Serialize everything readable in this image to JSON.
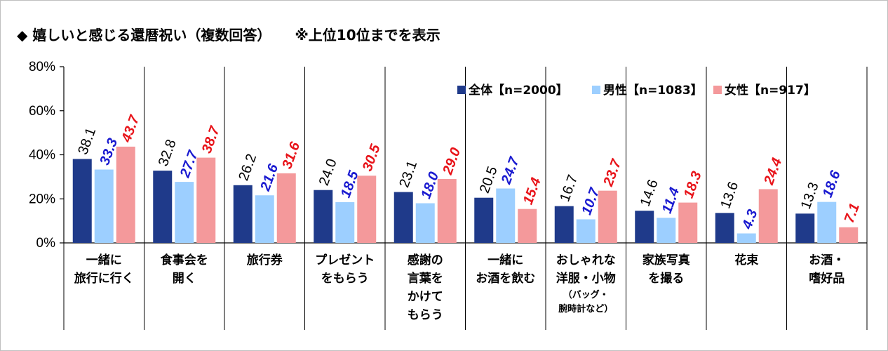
{
  "header": {
    "title": "◆ 嬉しいと感じる還暦祝い（複数回答）",
    "note": "※上位10位までを表示"
  },
  "colors": {
    "all": "#1f3a8a",
    "male": "#9dcfff",
    "female": "#f4999b",
    "label_all": "#000000",
    "label_male": "#1a1ad0",
    "label_female": "#e8141a"
  },
  "chart_data": {
    "type": "bar",
    "title": "◆ 嬉しいと感じる還暦祝い（複数回答）",
    "subtitle": "※上位10位までを表示",
    "ylim": [
      0,
      80
    ],
    "yticks": [
      "0%",
      "20%",
      "40%",
      "60%",
      "80%"
    ],
    "grid": false,
    "legend_position": "top-right",
    "categories": [
      {
        "lines": [
          "一緒に",
          "旅行に行く"
        ],
        "note": []
      },
      {
        "lines": [
          "食事会を",
          "開く"
        ],
        "note": []
      },
      {
        "lines": [
          "旅行券"
        ],
        "note": []
      },
      {
        "lines": [
          "プレゼント",
          "をもらう"
        ],
        "note": []
      },
      {
        "lines": [
          "感謝の",
          "言葉を",
          "かけて",
          "もらう"
        ],
        "note": []
      },
      {
        "lines": [
          "一緒に",
          "お酒を飲む"
        ],
        "note": []
      },
      {
        "lines": [
          "おしゃれな",
          "洋服・小物"
        ],
        "note": [
          "（バッグ・",
          "腕時計など）"
        ]
      },
      {
        "lines": [
          "家族写真",
          "を撮る"
        ],
        "note": []
      },
      {
        "lines": [
          "花束"
        ],
        "note": []
      },
      {
        "lines": [
          "お酒・",
          "嗜好品"
        ],
        "note": []
      }
    ],
    "series": [
      {
        "name": "全体【n=2000】",
        "values": [
          38.1,
          32.8,
          26.2,
          24.0,
          23.1,
          20.5,
          16.7,
          14.6,
          13.6,
          13.3
        ],
        "labels": [
          "38.1",
          "32.8",
          "26.2",
          "24.0",
          "23.1",
          "20.5",
          "16.7",
          "14.6",
          "13.6",
          "13.3"
        ]
      },
      {
        "name": "男性【n=1083】",
        "values": [
          33.3,
          27.7,
          21.6,
          18.5,
          18.0,
          24.7,
          10.7,
          11.4,
          4.3,
          18.6
        ],
        "labels": [
          "33.3",
          "27.7",
          "21.6",
          "18.5",
          "18.0",
          "24.7",
          "10.7",
          "11.4",
          "4.3",
          "18.6"
        ]
      },
      {
        "name": "女性【n=917】",
        "values": [
          43.7,
          38.7,
          31.6,
          30.5,
          29.0,
          15.4,
          23.7,
          18.3,
          24.4,
          7.1
        ],
        "labels": [
          "43.7",
          "38.7",
          "31.6",
          "30.5",
          "29.0",
          "15.4",
          "23.7",
          "18.3",
          "24.4",
          "7.1"
        ]
      }
    ]
  }
}
